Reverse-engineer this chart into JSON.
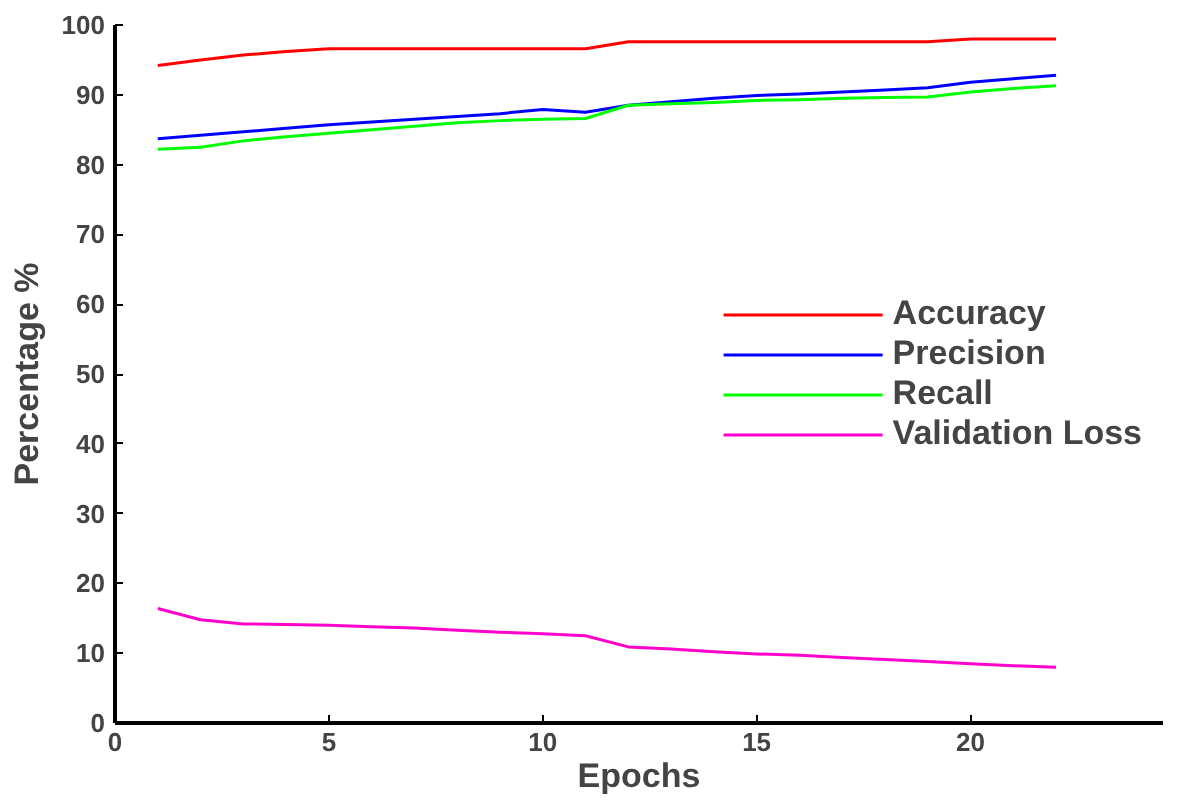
{
  "chart_data": {
    "type": "line",
    "xlabel": "Epochs",
    "ylabel": "Percentage %",
    "x": [
      1,
      2,
      3,
      4,
      5,
      6,
      7,
      8,
      9,
      10,
      11,
      12,
      13,
      14,
      15,
      16,
      17,
      18,
      19,
      20,
      21,
      22
    ],
    "series": [
      {
        "name": "Accuracy",
        "color": "#ff0000",
        "values": [
          94.2,
          95,
          95.7,
          96.2,
          96.6,
          96.6,
          96.6,
          96.6,
          96.6,
          96.6,
          96.6,
          97.6,
          97.6,
          97.6,
          97.6,
          97.6,
          97.6,
          97.6,
          97.6,
          98,
          98,
          98
        ]
      },
      {
        "name": "Precision",
        "color": "#0000ff",
        "values": [
          83.7,
          84.2,
          84.7,
          85.2,
          85.7,
          86.1,
          86.5,
          86.9,
          87.3,
          87.9,
          87.5,
          88.5,
          89,
          89.5,
          89.9,
          90.1,
          90.4,
          90.7,
          91,
          91.8,
          92.3,
          92.8
        ]
      },
      {
        "name": "Recall",
        "color": "#00ff00",
        "values": [
          82.2,
          82.5,
          83.4,
          84,
          84.5,
          85,
          85.5,
          86,
          86.3,
          86.5,
          86.6,
          88.5,
          88.7,
          88.9,
          89.2,
          89.3,
          89.5,
          89.6,
          89.7,
          90.4,
          90.9,
          91.3
        ]
      },
      {
        "name": "Validation Loss",
        "color": "#ff00cc",
        "values": [
          16.4,
          14.8,
          14.2,
          14.1,
          14,
          13.8,
          13.6,
          13.3,
          13,
          12.8,
          12.5,
          10.9,
          10.6,
          10.2,
          9.9,
          9.7,
          9.4,
          9.1,
          8.8,
          8.5,
          8.2,
          8
        ]
      }
    ],
    "xlim": [
      0,
      24.5
    ],
    "ylim": [
      0,
      100
    ],
    "xticks": [
      0,
      5,
      10,
      15,
      20
    ],
    "yticks": [
      0,
      10,
      20,
      30,
      40,
      50,
      60,
      70,
      80,
      90,
      100
    ],
    "grid": false,
    "legend": "center right",
    "marker": "none",
    "line_style": "solid"
  }
}
